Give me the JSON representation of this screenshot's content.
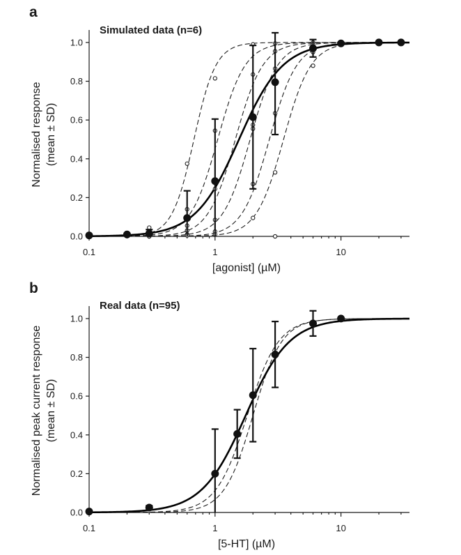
{
  "chart_data": [
    {
      "panel": "a",
      "type": "line",
      "title": "Simulated data (n=6)",
      "xlabel": "[agonist] (µM)",
      "ylabel_lines": [
        "Normalised response",
        "(mean ± SD)"
      ],
      "xscale": "log",
      "xlim": [
        0.1,
        35
      ],
      "ylim": [
        0,
        1.05
      ],
      "xticks": [
        0.1,
        1,
        10
      ],
      "xtick_labels": [
        "0.1",
        "1",
        "10"
      ],
      "yticks": [
        0,
        0.2,
        0.4,
        0.6,
        0.8,
        1.0
      ],
      "ytick_labels": [
        "0.0",
        "0.2",
        "0.4",
        "0.6",
        "0.8",
        "1.0"
      ],
      "fit_curve": {
        "ec50": 1.55,
        "hill": 2.5
      },
      "individual_curves": [
        {
          "ec50": 0.68,
          "hill": 5
        },
        {
          "ec50": 1.05,
          "hill": 4
        },
        {
          "ec50": 1.45,
          "hill": 4
        },
        {
          "ec50": 1.9,
          "hill": 4
        },
        {
          "ec50": 2.7,
          "hill": 4
        },
        {
          "ec50": 3.5,
          "hill": 4
        }
      ],
      "individual_points": [
        {
          "x": 0.3,
          "y": [
            0.045,
            0.01,
            0.005,
            0.0,
            0.0,
            0.0
          ]
        },
        {
          "x": 0.6,
          "y": [
            0.375,
            0.14,
            0.055,
            0.03,
            0.01,
            0.005
          ]
        },
        {
          "x": 1,
          "y": [
            0.815,
            0.545,
            0.245,
            0.085,
            0.025,
            0.01
          ]
        },
        {
          "x": 2,
          "y": [
            0.99,
            0.835,
            0.575,
            0.555,
            0.27,
            0.095
          ]
        },
        {
          "x": 3,
          "y": [
            0.995,
            0.955,
            0.865,
            0.635,
            0.33,
            0.0
          ]
        },
        {
          "x": 6,
          "y": [
            1.0,
            0.99,
            0.99,
            0.98,
            0.95,
            0.88
          ]
        }
      ],
      "mean_points": [
        {
          "x": 0.1,
          "y": 0.005,
          "sd": 0
        },
        {
          "x": 0.2,
          "y": 0.01,
          "sd": 0
        },
        {
          "x": 0.3,
          "y": 0.015,
          "sd": 0.02
        },
        {
          "x": 0.6,
          "y": 0.095,
          "sd": 0.14
        },
        {
          "x": 1,
          "y": 0.285,
          "sd": 0.32
        },
        {
          "x": 2,
          "y": 0.615,
          "sd": 0.37
        },
        {
          "x": 3,
          "y": 0.795,
          "sd": 0.27
        },
        {
          "x": 6,
          "y": 0.97,
          "sd": 0.045
        },
        {
          "x": 10,
          "y": 0.995,
          "sd": 0
        },
        {
          "x": 20,
          "y": 1.0,
          "sd": 0
        },
        {
          "x": 30,
          "y": 1.0,
          "sd": 0
        }
      ]
    },
    {
      "panel": "b",
      "type": "line",
      "title": "Real data (n=95)",
      "xlabel": "[5-HT] (µM)",
      "ylabel_lines": [
        "Normalised peak current response",
        "(mean ± SD)"
      ],
      "xscale": "log",
      "xlim": [
        0.1,
        35
      ],
      "ylim": [
        0,
        1.05
      ],
      "xticks": [
        0.1,
        1,
        10
      ],
      "xtick_labels": [
        "0.1",
        "1",
        "10"
      ],
      "yticks": [
        0,
        0.2,
        0.4,
        0.6,
        0.8,
        1.0
      ],
      "ytick_labels": [
        "0.0",
        "0.2",
        "0.4",
        "0.6",
        "0.8",
        "1.0"
      ],
      "fit_curve": {
        "ec50": 1.75,
        "hill": 2.5
      },
      "individual_curves": [
        {
          "ec50": 1.8,
          "hill": 3.5
        },
        {
          "ec50": 2.0,
          "hill": 3.8
        }
      ],
      "individual_points": [],
      "mean_points": [
        {
          "x": 0.1,
          "y": 0.005,
          "sd": 0
        },
        {
          "x": 0.3,
          "y": 0.025,
          "sd": 0.01
        },
        {
          "x": 1,
          "y": 0.2,
          "sd": 0.23
        },
        {
          "x": 1.5,
          "y": 0.405,
          "sd": 0.125
        },
        {
          "x": 2,
          "y": 0.605,
          "sd": 0.24
        },
        {
          "x": 3,
          "y": 0.815,
          "sd": 0.17
        },
        {
          "x": 6,
          "y": 0.975,
          "sd": 0.065
        },
        {
          "x": 10,
          "y": 1.0,
          "sd": 0
        }
      ]
    }
  ]
}
